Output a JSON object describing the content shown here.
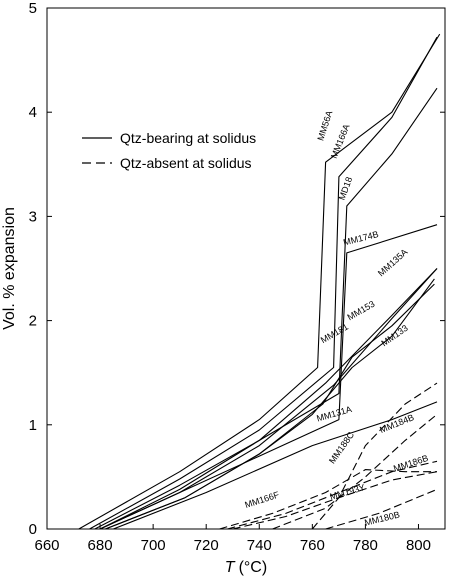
{
  "chart_data": {
    "type": "line",
    "xlabel_var": "T",
    "xlabel_unit": "(°C)",
    "ylabel": "Vol. % expansion",
    "xlim": [
      660,
      810
    ],
    "ylim": [
      0,
      5
    ],
    "xticks": [
      660,
      680,
      700,
      720,
      740,
      760,
      780,
      800
    ],
    "yticks": [
      0,
      1,
      2,
      3,
      4,
      5
    ],
    "grid": false,
    "legend_position": "upper-left",
    "legend": [
      {
        "label": "Qtz-bearing at solidus",
        "dash": "solid"
      },
      {
        "label": "Qtz-absent at solidus",
        "dash": "dashed"
      }
    ],
    "series": [
      {
        "name": "MM56A",
        "dash": "solid",
        "x": [
          672,
          710,
          740,
          762,
          765,
          790,
          808
        ],
        "y": [
          0,
          0.55,
          1.05,
          1.55,
          3.52,
          4.0,
          4.75
        ]
      },
      {
        "name": "MM166A",
        "dash": "solid",
        "x": [
          676,
          710,
          740,
          768,
          770,
          790,
          807
        ],
        "y": [
          0,
          0.48,
          0.95,
          1.55,
          3.38,
          3.95,
          4.72
        ]
      },
      {
        "name": "MD18",
        "dash": "solid",
        "x": [
          678,
          710,
          740,
          770,
          773,
          790,
          807
        ],
        "y": [
          0,
          0.42,
          0.85,
          1.3,
          3.1,
          3.6,
          4.23
        ]
      },
      {
        "name": "MM174B",
        "dash": "solid",
        "x": [
          680,
          710,
          740,
          770,
          773,
          807
        ],
        "y": [
          0,
          0.35,
          0.7,
          1.05,
          2.65,
          2.92
        ]
      },
      {
        "name": "MM135A",
        "dash": "solid",
        "x": [
          680,
          710,
          740,
          765,
          790,
          807
        ],
        "y": [
          0,
          0.38,
          0.85,
          1.4,
          2.05,
          2.5
        ]
      },
      {
        "name": "MM153",
        "dash": "solid",
        "x": [
          680,
          710,
          740,
          768,
          790,
          807
        ],
        "y": [
          0,
          0.35,
          0.8,
          1.38,
          2.02,
          2.5
        ]
      },
      {
        "name": "MM181",
        "dash": "solid",
        "x": [
          682,
          712,
          740,
          764,
          775,
          790,
          806
        ],
        "y": [
          0,
          0.3,
          0.72,
          1.2,
          1.65,
          1.95,
          2.35
        ]
      },
      {
        "name": "MM133",
        "dash": "solid",
        "x": [
          682,
          712,
          740,
          760,
          775,
          790,
          806
        ],
        "y": [
          0,
          0.3,
          0.72,
          1.1,
          1.55,
          1.85,
          2.4
        ]
      },
      {
        "name": "MM131A",
        "dash": "solid",
        "x": [
          685,
          720,
          760,
          790,
          807
        ],
        "y": [
          0,
          0.35,
          0.8,
          1.05,
          1.22
        ]
      },
      {
        "name": "MM184B",
        "dash": "dashed",
        "x": [
          745,
          765,
          780,
          795,
          807
        ],
        "y": [
          0,
          0.2,
          0.5,
          0.85,
          1.1
        ]
      },
      {
        "name": "MM188C",
        "dash": "dashed",
        "x": [
          760,
          770,
          780,
          795,
          807
        ],
        "y": [
          0,
          0.3,
          0.8,
          1.2,
          1.4
        ]
      },
      {
        "name": "MM186B",
        "dash": "dashed",
        "x": [
          728,
          750,
          770,
          790,
          807
        ],
        "y": [
          0,
          0.15,
          0.35,
          0.55,
          0.65
        ]
      },
      {
        "name": "MM166F",
        "dash": "dashed",
        "x": [
          725,
          745,
          765,
          780,
          795,
          807
        ],
        "y": [
          0,
          0.15,
          0.35,
          0.57,
          0.55,
          0.55
        ]
      },
      {
        "name": "MM193Y",
        "dash": "dashed",
        "x": [
          730,
          750,
          770,
          790,
          807
        ],
        "y": [
          0,
          0.12,
          0.3,
          0.47,
          0.55
        ]
      },
      {
        "name": "MM180B",
        "dash": "dashed",
        "x": [
          765,
          785,
          807
        ],
        "y": [
          0,
          0.15,
          0.38
        ]
      }
    ],
    "annotations": [
      {
        "text": "MM56A",
        "x": 764,
        "y": 3.72,
        "angle": -72
      },
      {
        "text": "MM166A",
        "x": 769,
        "y": 3.55,
        "angle": -68
      },
      {
        "text": "MD18",
        "x": 772,
        "y": 3.15,
        "angle": -70
      },
      {
        "text": "MM174B",
        "x": 772,
        "y": 2.72,
        "angle": -14
      },
      {
        "text": "MM135A",
        "x": 786,
        "y": 2.42,
        "angle": -42
      },
      {
        "text": "MM153",
        "x": 774,
        "y": 2.0,
        "angle": -30
      },
      {
        "text": "MM181",
        "x": 764,
        "y": 1.78,
        "angle": -30
      },
      {
        "text": "MM133",
        "x": 787,
        "y": 1.75,
        "angle": -35
      },
      {
        "text": "MM131A",
        "x": 762,
        "y": 1.03,
        "angle": -16
      },
      {
        "text": "MM184B",
        "x": 786,
        "y": 0.92,
        "angle": -22
      },
      {
        "text": "MM188C",
        "x": 768,
        "y": 0.62,
        "angle": -55
      },
      {
        "text": "MM186B",
        "x": 791,
        "y": 0.55,
        "angle": -18
      },
      {
        "text": "MM166F",
        "x": 735,
        "y": 0.2,
        "angle": -18
      },
      {
        "text": "MM193Y",
        "x": 767,
        "y": 0.28,
        "angle": -16
      },
      {
        "text": "MM180B",
        "x": 780,
        "y": 0.03,
        "angle": -14
      }
    ]
  }
}
